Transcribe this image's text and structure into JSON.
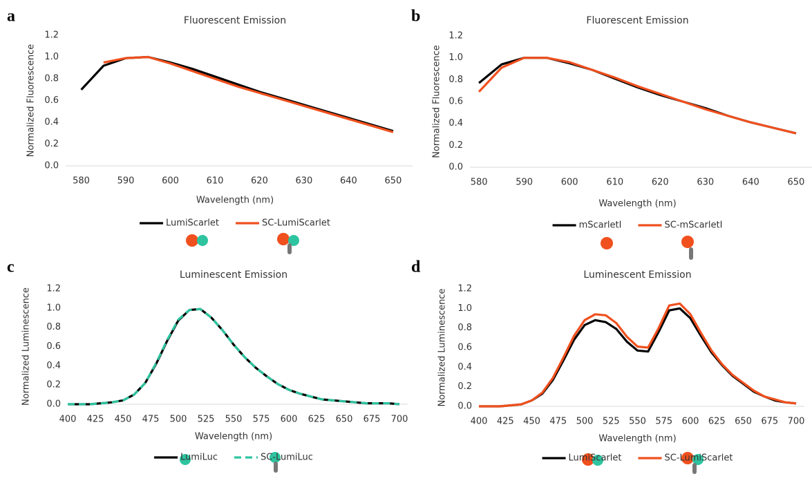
{
  "chart_data": [
    {
      "type": "line",
      "panel_label": "a",
      "title": "Fluorescent Emission",
      "x_label": "Wavelength (nm)",
      "y_label": "Normalized Fluorescence",
      "x": [
        580,
        585,
        590,
        595,
        600,
        605,
        610,
        615,
        620,
        625,
        630,
        635,
        640,
        645,
        650
      ],
      "series": [
        {
          "name": "LumiScarlet",
          "color": "#000000",
          "values": [
            0.7,
            0.92,
            0.99,
            1.0,
            0.95,
            0.89,
            0.82,
            0.75,
            0.68,
            0.62,
            0.56,
            0.5,
            0.44,
            0.38,
            0.32
          ]
        },
        {
          "name": "SC-LumiScarlet",
          "color": "#f0501e",
          "values": [
            null,
            0.95,
            0.99,
            1.0,
            0.94,
            0.87,
            0.8,
            0.73,
            0.67,
            0.61,
            0.55,
            0.49,
            0.43,
            0.37,
            0.31
          ]
        }
      ],
      "xlim": [
        576.5,
        652.5
      ],
      "xticks": [
        580,
        590,
        600,
        610,
        620,
        630,
        640,
        650
      ],
      "ylim": [
        0,
        1.2
      ],
      "yticks": [
        {
          "value": 0,
          "label": "0.0"
        },
        0.2,
        0.4,
        0.6,
        0.8,
        {
          "value": 1,
          "label": "1.0"
        },
        1.2
      ],
      "grid": false,
      "legend": "bottom"
    },
    {
      "type": "line",
      "panel_label": "b",
      "title": "Fluorescent Emission",
      "x_label": "Wavelength (nm)",
      "y_label": "Normalized Fluorescence",
      "x": [
        580,
        585,
        590,
        595,
        600,
        605,
        610,
        615,
        620,
        625,
        630,
        635,
        640,
        645,
        650
      ],
      "series": [
        {
          "name": "mScarletI",
          "color": "#000000",
          "values": [
            0.77,
            0.94,
            1.0,
            1.0,
            0.95,
            0.89,
            0.81,
            0.73,
            0.66,
            0.6,
            0.54,
            0.47,
            0.41,
            0.36,
            0.31
          ]
        },
        {
          "name": "SC-mScarletI",
          "color": "#f0501e",
          "values": [
            0.69,
            0.91,
            1.0,
            1.0,
            0.96,
            0.89,
            0.82,
            0.74,
            0.67,
            0.6,
            0.53,
            0.47,
            0.41,
            0.36,
            0.31
          ]
        }
      ],
      "xlim": [
        578,
        652
      ],
      "xticks": [
        580,
        590,
        600,
        610,
        620,
        630,
        640,
        650
      ],
      "ylim": [
        0,
        1.2
      ],
      "yticks": [
        {
          "value": 0,
          "label": "0.0"
        },
        0.2,
        0.4,
        0.6,
        0.8,
        {
          "value": 1,
          "label": "1.0"
        },
        1.2
      ],
      "grid": false,
      "legend": "bottom"
    },
    {
      "type": "line",
      "panel_label": "c",
      "title": "Luminescent Emission",
      "x_label": "Wavelength (nm)",
      "y_label": "Normalized Luminescence",
      "x": [
        400,
        410,
        420,
        430,
        440,
        450,
        460,
        470,
        480,
        490,
        500,
        510,
        520,
        530,
        540,
        550,
        560,
        570,
        580,
        590,
        600,
        610,
        620,
        630,
        640,
        650,
        660,
        670,
        680,
        690,
        700
      ],
      "series": [
        {
          "name": "LumiLuc",
          "color": "#000000",
          "style": "solid",
          "values": [
            0,
            0,
            0,
            0.01,
            0.02,
            0.04,
            0.1,
            0.22,
            0.42,
            0.66,
            0.87,
            0.98,
            0.99,
            0.9,
            0.77,
            0.62,
            0.49,
            0.38,
            0.29,
            0.21,
            0.15,
            0.11,
            0.08,
            0.05,
            0.04,
            0.03,
            0.02,
            0.01,
            0.01,
            0.01,
            0
          ]
        },
        {
          "name": "SC-LumiLuc",
          "color": "#2ec4a0",
          "style": "dashed",
          "values": [
            0,
            0,
            0,
            0.01,
            0.02,
            0.04,
            0.1,
            0.22,
            0.43,
            0.67,
            0.88,
            0.98,
            0.99,
            0.9,
            0.77,
            0.62,
            0.49,
            0.38,
            0.29,
            0.21,
            0.15,
            0.11,
            0.08,
            0.05,
            0.04,
            0.03,
            0.02,
            0.01,
            0.01,
            0.01,
            0
          ]
        }
      ],
      "xlim": [
        400,
        700
      ],
      "xticks": [
        400,
        425,
        450,
        475,
        500,
        525,
        550,
        575,
        600,
        625,
        650,
        675,
        700
      ],
      "ylim": [
        0,
        1.2
      ],
      "yticks": [
        {
          "value": 0,
          "label": "0.0"
        },
        0.2,
        0.4,
        0.6,
        0.8,
        {
          "value": 1,
          "label": "1.0"
        },
        1.2
      ],
      "grid": false,
      "legend": "bottom"
    },
    {
      "type": "line",
      "panel_label": "d",
      "title": "Luminescent Emission",
      "x_label": "Wavelength (nm)",
      "y_label": "Normalized Luminescence",
      "x": [
        400,
        410,
        420,
        430,
        440,
        450,
        460,
        470,
        480,
        490,
        500,
        510,
        520,
        530,
        540,
        550,
        560,
        570,
        580,
        590,
        600,
        610,
        620,
        630,
        640,
        650,
        660,
        670,
        680,
        690,
        700
      ],
      "series": [
        {
          "name": "LumiScarlet",
          "color": "#000000",
          "values": [
            0,
            0,
            0,
            0.01,
            0.02,
            0.06,
            0.13,
            0.27,
            0.47,
            0.68,
            0.83,
            0.88,
            0.86,
            0.79,
            0.66,
            0.57,
            0.56,
            0.76,
            0.98,
            1.0,
            0.9,
            0.72,
            0.55,
            0.42,
            0.31,
            0.23,
            0.15,
            0.1,
            0.06,
            0.04,
            0.03
          ]
        },
        {
          "name": "SC-LumiScarlet",
          "color": "#f0501e",
          "values": [
            0,
            0,
            0,
            0.01,
            0.02,
            0.06,
            0.14,
            0.29,
            0.5,
            0.72,
            0.88,
            0.94,
            0.93,
            0.85,
            0.71,
            0.61,
            0.6,
            0.8,
            1.03,
            1.05,
            0.94,
            0.75,
            0.57,
            0.43,
            0.32,
            0.24,
            0.16,
            0.1,
            0.07,
            0.04,
            0.03
          ]
        }
      ],
      "xlim": [
        400,
        700
      ],
      "xticks": [
        400,
        425,
        450,
        475,
        500,
        525,
        550,
        575,
        600,
        625,
        650,
        675,
        700
      ],
      "ylim": [
        0,
        1.2
      ],
      "yticks": [
        {
          "value": 0,
          "label": "0.0"
        },
        0.2,
        0.4,
        0.6,
        0.8,
        {
          "value": 1,
          "label": "1.0"
        },
        1.2
      ],
      "grid": false,
      "legend": "bottom"
    }
  ]
}
